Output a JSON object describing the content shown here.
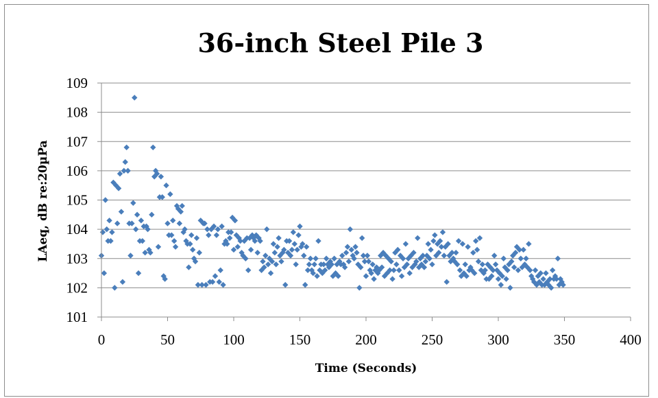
{
  "chart_data": {
    "type": "scatter",
    "title": "36-inch Steel Pile 3",
    "xlabel": "Time (Seconds)",
    "ylabel": "LAeq, dB re:20µPa",
    "xlim": [
      0,
      400
    ],
    "ylim": [
      101,
      109
    ],
    "xticks": [
      "0",
      "50",
      "100",
      "150",
      "200",
      "250",
      "300",
      "350",
      "400"
    ],
    "yticks": [
      "101",
      "102",
      "103",
      "104",
      "105",
      "106",
      "107",
      "108",
      "109"
    ],
    "grid": "horizontal",
    "legend": "none",
    "marker": "diamond",
    "color": "#4a7ebb",
    "points": [
      [
        0,
        103.1
      ],
      [
        1,
        103.9
      ],
      [
        2,
        102.5
      ],
      [
        3,
        105.0
      ],
      [
        4,
        104.0
      ],
      [
        5,
        103.6
      ],
      [
        6,
        104.3
      ],
      [
        7,
        103.6
      ],
      [
        8,
        103.9
      ],
      [
        9,
        105.6
      ],
      [
        10,
        102.0
      ],
      [
        11,
        105.5
      ],
      [
        12,
        104.2
      ],
      [
        13,
        105.4
      ],
      [
        14,
        105.9
      ],
      [
        15,
        104.6
      ],
      [
        16,
        102.2
      ],
      [
        17,
        106.0
      ],
      [
        18,
        106.3
      ],
      [
        19,
        106.8
      ],
      [
        20,
        106.0
      ],
      [
        21,
        104.2
      ],
      [
        22,
        103.1
      ],
      [
        23,
        104.2
      ],
      [
        24,
        104.9
      ],
      [
        25,
        108.5
      ],
      [
        26,
        104.0
      ],
      [
        27,
        104.5
      ],
      [
        28,
        102.5
      ],
      [
        29,
        103.6
      ],
      [
        30,
        104.3
      ],
      [
        31,
        103.6
      ],
      [
        32,
        104.1
      ],
      [
        33,
        103.2
      ],
      [
        34,
        104.1
      ],
      [
        35,
        104.0
      ],
      [
        36,
        103.3
      ],
      [
        37,
        103.2
      ],
      [
        38,
        104.5
      ],
      [
        39,
        106.8
      ],
      [
        40,
        105.8
      ],
      [
        41,
        106.0
      ],
      [
        42,
        105.9
      ],
      [
        43,
        103.4
      ],
      [
        44,
        105.1
      ],
      [
        45,
        105.8
      ],
      [
        46,
        105.1
      ],
      [
        47,
        102.4
      ],
      [
        48,
        102.3
      ],
      [
        49,
        105.5
      ],
      [
        50,
        104.2
      ],
      [
        51,
        103.8
      ],
      [
        52,
        105.2
      ],
      [
        53,
        103.8
      ],
      [
        54,
        104.3
      ],
      [
        55,
        103.6
      ],
      [
        56,
        103.4
      ],
      [
        57,
        104.8
      ],
      [
        58,
        104.7
      ],
      [
        59,
        104.2
      ],
      [
        60,
        104.6
      ],
      [
        61,
        104.8
      ],
      [
        62,
        103.9
      ],
      [
        63,
        104.0
      ],
      [
        64,
        103.6
      ],
      [
        65,
        103.5
      ],
      [
        66,
        102.7
      ],
      [
        67,
        103.5
      ],
      [
        68,
        103.8
      ],
      [
        69,
        103.3
      ],
      [
        70,
        103.0
      ],
      [
        71,
        102.9
      ],
      [
        72,
        103.7
      ],
      [
        73,
        102.1
      ],
      [
        74,
        103.2
      ],
      [
        75,
        104.3
      ],
      [
        76,
        102.1
      ],
      [
        77,
        104.2
      ],
      [
        78,
        104.2
      ],
      [
        79,
        102.1
      ],
      [
        80,
        104.0
      ],
      [
        81,
        103.8
      ],
      [
        82,
        102.2
      ],
      [
        83,
        104.0
      ],
      [
        84,
        102.2
      ],
      [
        85,
        104.1
      ],
      [
        86,
        102.4
      ],
      [
        87,
        103.8
      ],
      [
        88,
        104.0
      ],
      [
        89,
        102.2
      ],
      [
        90,
        102.6
      ],
      [
        91,
        104.1
      ],
      [
        92,
        102.1
      ],
      [
        93,
        103.5
      ],
      [
        94,
        103.6
      ],
      [
        95,
        103.5
      ],
      [
        96,
        103.9
      ],
      [
        97,
        103.7
      ],
      [
        98,
        103.9
      ],
      [
        99,
        104.4
      ],
      [
        100,
        103.3
      ],
      [
        101,
        104.3
      ],
      [
        102,
        103.8
      ],
      [
        103,
        103.4
      ],
      [
        104,
        103.7
      ],
      [
        105,
        103.6
      ],
      [
        106,
        103.2
      ],
      [
        107,
        103.1
      ],
      [
        108,
        103.6
      ],
      [
        109,
        103.0
      ],
      [
        110,
        103.7
      ],
      [
        111,
        102.6
      ],
      [
        112,
        103.7
      ],
      [
        113,
        103.3
      ],
      [
        114,
        103.8
      ],
      [
        115,
        103.7
      ],
      [
        116,
        103.6
      ],
      [
        117,
        103.8
      ],
      [
        118,
        103.2
      ],
      [
        119,
        103.7
      ],
      [
        120,
        103.6
      ],
      [
        121,
        102.6
      ],
      [
        122,
        102.9
      ],
      [
        123,
        102.7
      ],
      [
        124,
        103.1
      ],
      [
        125,
        104.0
      ],
      [
        126,
        102.8
      ],
      [
        127,
        103.0
      ],
      [
        128,
        102.5
      ],
      [
        129,
        102.9
      ],
      [
        130,
        103.5
      ],
      [
        131,
        103.2
      ],
      [
        132,
        102.8
      ],
      [
        133,
        103.4
      ],
      [
        134,
        103.7
      ],
      [
        135,
        103.1
      ],
      [
        136,
        102.9
      ],
      [
        137,
        103.2
      ],
      [
        138,
        103.3
      ],
      [
        139,
        102.1
      ],
      [
        140,
        103.6
      ],
      [
        141,
        103.2
      ],
      [
        142,
        103.6
      ],
      [
        143,
        103.1
      ],
      [
        144,
        103.3
      ],
      [
        145,
        103.9
      ],
      [
        146,
        103.5
      ],
      [
        147,
        102.8
      ],
      [
        148,
        103.3
      ],
      [
        149,
        103.8
      ],
      [
        150,
        104.1
      ],
      [
        151,
        103.4
      ],
      [
        152,
        103.5
      ],
      [
        153,
        103.1
      ],
      [
        154,
        102.1
      ],
      [
        155,
        103.4
      ],
      [
        156,
        102.6
      ],
      [
        157,
        102.8
      ],
      [
        158,
        103.0
      ],
      [
        159,
        102.6
      ],
      [
        160,
        102.5
      ],
      [
        161,
        102.8
      ],
      [
        162,
        103.0
      ],
      [
        163,
        102.4
      ],
      [
        164,
        103.6
      ],
      [
        165,
        102.6
      ],
      [
        166,
        102.8
      ],
      [
        167,
        102.5
      ],
      [
        168,
        102.8
      ],
      [
        169,
        102.6
      ],
      [
        170,
        103.0
      ],
      [
        171,
        102.8
      ],
      [
        172,
        102.7
      ],
      [
        173,
        102.9
      ],
      [
        174,
        102.8
      ],
      [
        175,
        102.4
      ],
      [
        176,
        103.0
      ],
      [
        177,
        102.5
      ],
      [
        178,
        102.8
      ],
      [
        179,
        102.4
      ],
      [
        180,
        102.9
      ],
      [
        181,
        102.8
      ],
      [
        182,
        103.1
      ],
      [
        183,
        102.8
      ],
      [
        184,
        102.7
      ],
      [
        185,
        103.2
      ],
      [
        186,
        103.4
      ],
      [
        187,
        102.9
      ],
      [
        188,
        104.0
      ],
      [
        189,
        103.3
      ],
      [
        190,
        103.1
      ],
      [
        191,
        103.0
      ],
      [
        192,
        103.4
      ],
      [
        193,
        103.2
      ],
      [
        194,
        102.8
      ],
      [
        195,
        102.0
      ],
      [
        196,
        102.7
      ],
      [
        197,
        103.7
      ],
      [
        198,
        103.1
      ],
      [
        199,
        102.9
      ],
      [
        200,
        102.4
      ],
      [
        201,
        103.1
      ],
      [
        202,
        102.9
      ],
      [
        203,
        102.6
      ],
      [
        204,
        102.5
      ],
      [
        205,
        102.8
      ],
      [
        206,
        102.3
      ],
      [
        207,
        102.6
      ],
      [
        208,
        102.7
      ],
      [
        209,
        102.5
      ],
      [
        210,
        102.6
      ],
      [
        211,
        103.1
      ],
      [
        212,
        102.7
      ],
      [
        213,
        103.2
      ],
      [
        214,
        102.4
      ],
      [
        215,
        103.1
      ],
      [
        216,
        102.5
      ],
      [
        217,
        103.0
      ],
      [
        218,
        102.6
      ],
      [
        219,
        102.9
      ],
      [
        220,
        102.3
      ],
      [
        221,
        102.6
      ],
      [
        222,
        103.2
      ],
      [
        223,
        102.8
      ],
      [
        224,
        103.3
      ],
      [
        225,
        102.6
      ],
      [
        226,
        103.1
      ],
      [
        227,
        102.4
      ],
      [
        228,
        103.0
      ],
      [
        229,
        102.7
      ],
      [
        230,
        103.5
      ],
      [
        231,
        102.8
      ],
      [
        232,
        103.0
      ],
      [
        233,
        102.5
      ],
      [
        234,
        103.1
      ],
      [
        235,
        102.7
      ],
      [
        236,
        103.2
      ],
      [
        237,
        102.8
      ],
      [
        238,
        102.9
      ],
      [
        239,
        103.7
      ],
      [
        240,
        102.7
      ],
      [
        241,
        103.0
      ],
      [
        242,
        102.8
      ],
      [
        243,
        103.1
      ],
      [
        244,
        102.7
      ],
      [
        245,
        102.9
      ],
      [
        246,
        103.1
      ],
      [
        247,
        103.5
      ],
      [
        248,
        103.0
      ],
      [
        249,
        103.3
      ],
      [
        250,
        102.8
      ],
      [
        251,
        103.6
      ],
      [
        252,
        103.8
      ],
      [
        253,
        103.1
      ],
      [
        254,
        103.5
      ],
      [
        255,
        103.2
      ],
      [
        256,
        103.6
      ],
      [
        257,
        103.4
      ],
      [
        258,
        103.9
      ],
      [
        259,
        103.1
      ],
      [
        260,
        103.4
      ],
      [
        261,
        102.2
      ],
      [
        262,
        103.5
      ],
      [
        263,
        103.1
      ],
      [
        264,
        102.9
      ],
      [
        265,
        103.2
      ],
      [
        266,
        103.0
      ],
      [
        267,
        102.9
      ],
      [
        268,
        103.2
      ],
      [
        269,
        102.8
      ],
      [
        270,
        103.6
      ],
      [
        271,
        102.6
      ],
      [
        272,
        102.4
      ],
      [
        273,
        103.5
      ],
      [
        274,
        102.5
      ],
      [
        275,
        102.8
      ],
      [
        276,
        102.4
      ],
      [
        277,
        103.4
      ],
      [
        278,
        102.6
      ],
      [
        279,
        102.7
      ],
      [
        280,
        102.6
      ],
      [
        281,
        103.2
      ],
      [
        282,
        102.5
      ],
      [
        283,
        103.6
      ],
      [
        284,
        103.3
      ],
      [
        285,
        102.9
      ],
      [
        286,
        103.7
      ],
      [
        287,
        102.6
      ],
      [
        288,
        102.8
      ],
      [
        289,
        102.5
      ],
      [
        290,
        102.6
      ],
      [
        291,
        102.3
      ],
      [
        292,
        102.8
      ],
      [
        293,
        102.3
      ],
      [
        294,
        102.7
      ],
      [
        295,
        102.4
      ],
      [
        296,
        102.6
      ],
      [
        297,
        103.1
      ],
      [
        298,
        102.8
      ],
      [
        299,
        102.6
      ],
      [
        300,
        102.3
      ],
      [
        301,
        102.5
      ],
      [
        302,
        102.1
      ],
      [
        303,
        102.4
      ],
      [
        304,
        103.0
      ],
      [
        305,
        102.7
      ],
      [
        306,
        102.3
      ],
      [
        307,
        102.6
      ],
      [
        308,
        102.8
      ],
      [
        309,
        102.0
      ],
      [
        310,
        102.9
      ],
      [
        311,
        103.1
      ],
      [
        312,
        102.7
      ],
      [
        313,
        103.2
      ],
      [
        314,
        103.4
      ],
      [
        315,
        102.6
      ],
      [
        316,
        103.3
      ],
      [
        317,
        103.0
      ],
      [
        318,
        102.7
      ],
      [
        319,
        103.3
      ],
      [
        320,
        102.8
      ],
      [
        321,
        103.0
      ],
      [
        322,
        102.7
      ],
      [
        323,
        103.5
      ],
      [
        324,
        102.6
      ],
      [
        325,
        102.4
      ],
      [
        326,
        102.3
      ],
      [
        327,
        102.2
      ],
      [
        328,
        102.6
      ],
      [
        329,
        102.1
      ],
      [
        330,
        102.4
      ],
      [
        331,
        102.2
      ],
      [
        332,
        102.5
      ],
      [
        333,
        102.1
      ],
      [
        334,
        102.3
      ],
      [
        335,
        102.1
      ],
      [
        336,
        102.5
      ],
      [
        337,
        102.2
      ],
      [
        338,
        102.1
      ],
      [
        339,
        102.3
      ],
      [
        340,
        102.0
      ],
      [
        341,
        102.6
      ],
      [
        342,
        102.3
      ],
      [
        343,
        102.4
      ],
      [
        344,
        102.3
      ],
      [
        345,
        103.0
      ],
      [
        346,
        102.1
      ],
      [
        347,
        102.3
      ],
      [
        348,
        102.2
      ],
      [
        349,
        102.1
      ]
    ]
  }
}
